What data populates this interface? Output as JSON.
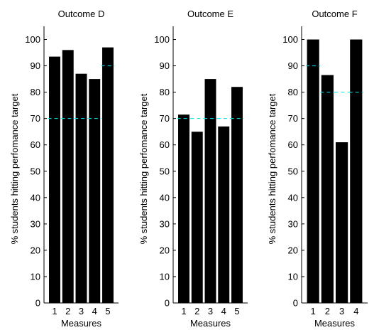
{
  "chart_data": [
    {
      "type": "bar",
      "title": "Outcome D",
      "xlabel": "Measures",
      "ylabel": "% students hitting perfomance target",
      "categories": [
        "1",
        "2",
        "3",
        "4",
        "5"
      ],
      "values": [
        93.5,
        96,
        87,
        85,
        97
      ],
      "targets": [
        70,
        70,
        70,
        70,
        90
      ],
      "ylim": [
        0,
        105
      ],
      "yticks": [
        0,
        10,
        20,
        30,
        40,
        50,
        60,
        70,
        80,
        90,
        100
      ],
      "grid": false,
      "bar_color": "#000000",
      "target_color": "#00e5e5"
    },
    {
      "type": "bar",
      "title": "Outcome E",
      "xlabel": "Measures",
      "ylabel": "% students hitting perfomance target",
      "categories": [
        "1",
        "2",
        "3",
        "4",
        "5"
      ],
      "values": [
        71.5,
        65,
        85,
        67,
        82
      ],
      "targets": [
        70,
        70,
        70,
        70,
        70
      ],
      "ylim": [
        0,
        105
      ],
      "yticks": [
        0,
        10,
        20,
        30,
        40,
        50,
        60,
        70,
        80,
        90,
        100
      ],
      "grid": false,
      "bar_color": "#000000",
      "target_color": "#00e5e5"
    },
    {
      "type": "bar",
      "title": "Outcome F",
      "xlabel": "Measures",
      "ylabel": "% students hitting perfomance target",
      "categories": [
        "1",
        "2",
        "3",
        "4"
      ],
      "values": [
        100,
        86.5,
        61,
        100
      ],
      "targets": [
        90,
        80,
        80,
        80
      ],
      "ylim": [
        0,
        105
      ],
      "yticks": [
        0,
        10,
        20,
        30,
        40,
        50,
        60,
        70,
        80,
        90,
        100
      ],
      "grid": false,
      "bar_color": "#000000",
      "target_color": "#00e5e5"
    }
  ]
}
